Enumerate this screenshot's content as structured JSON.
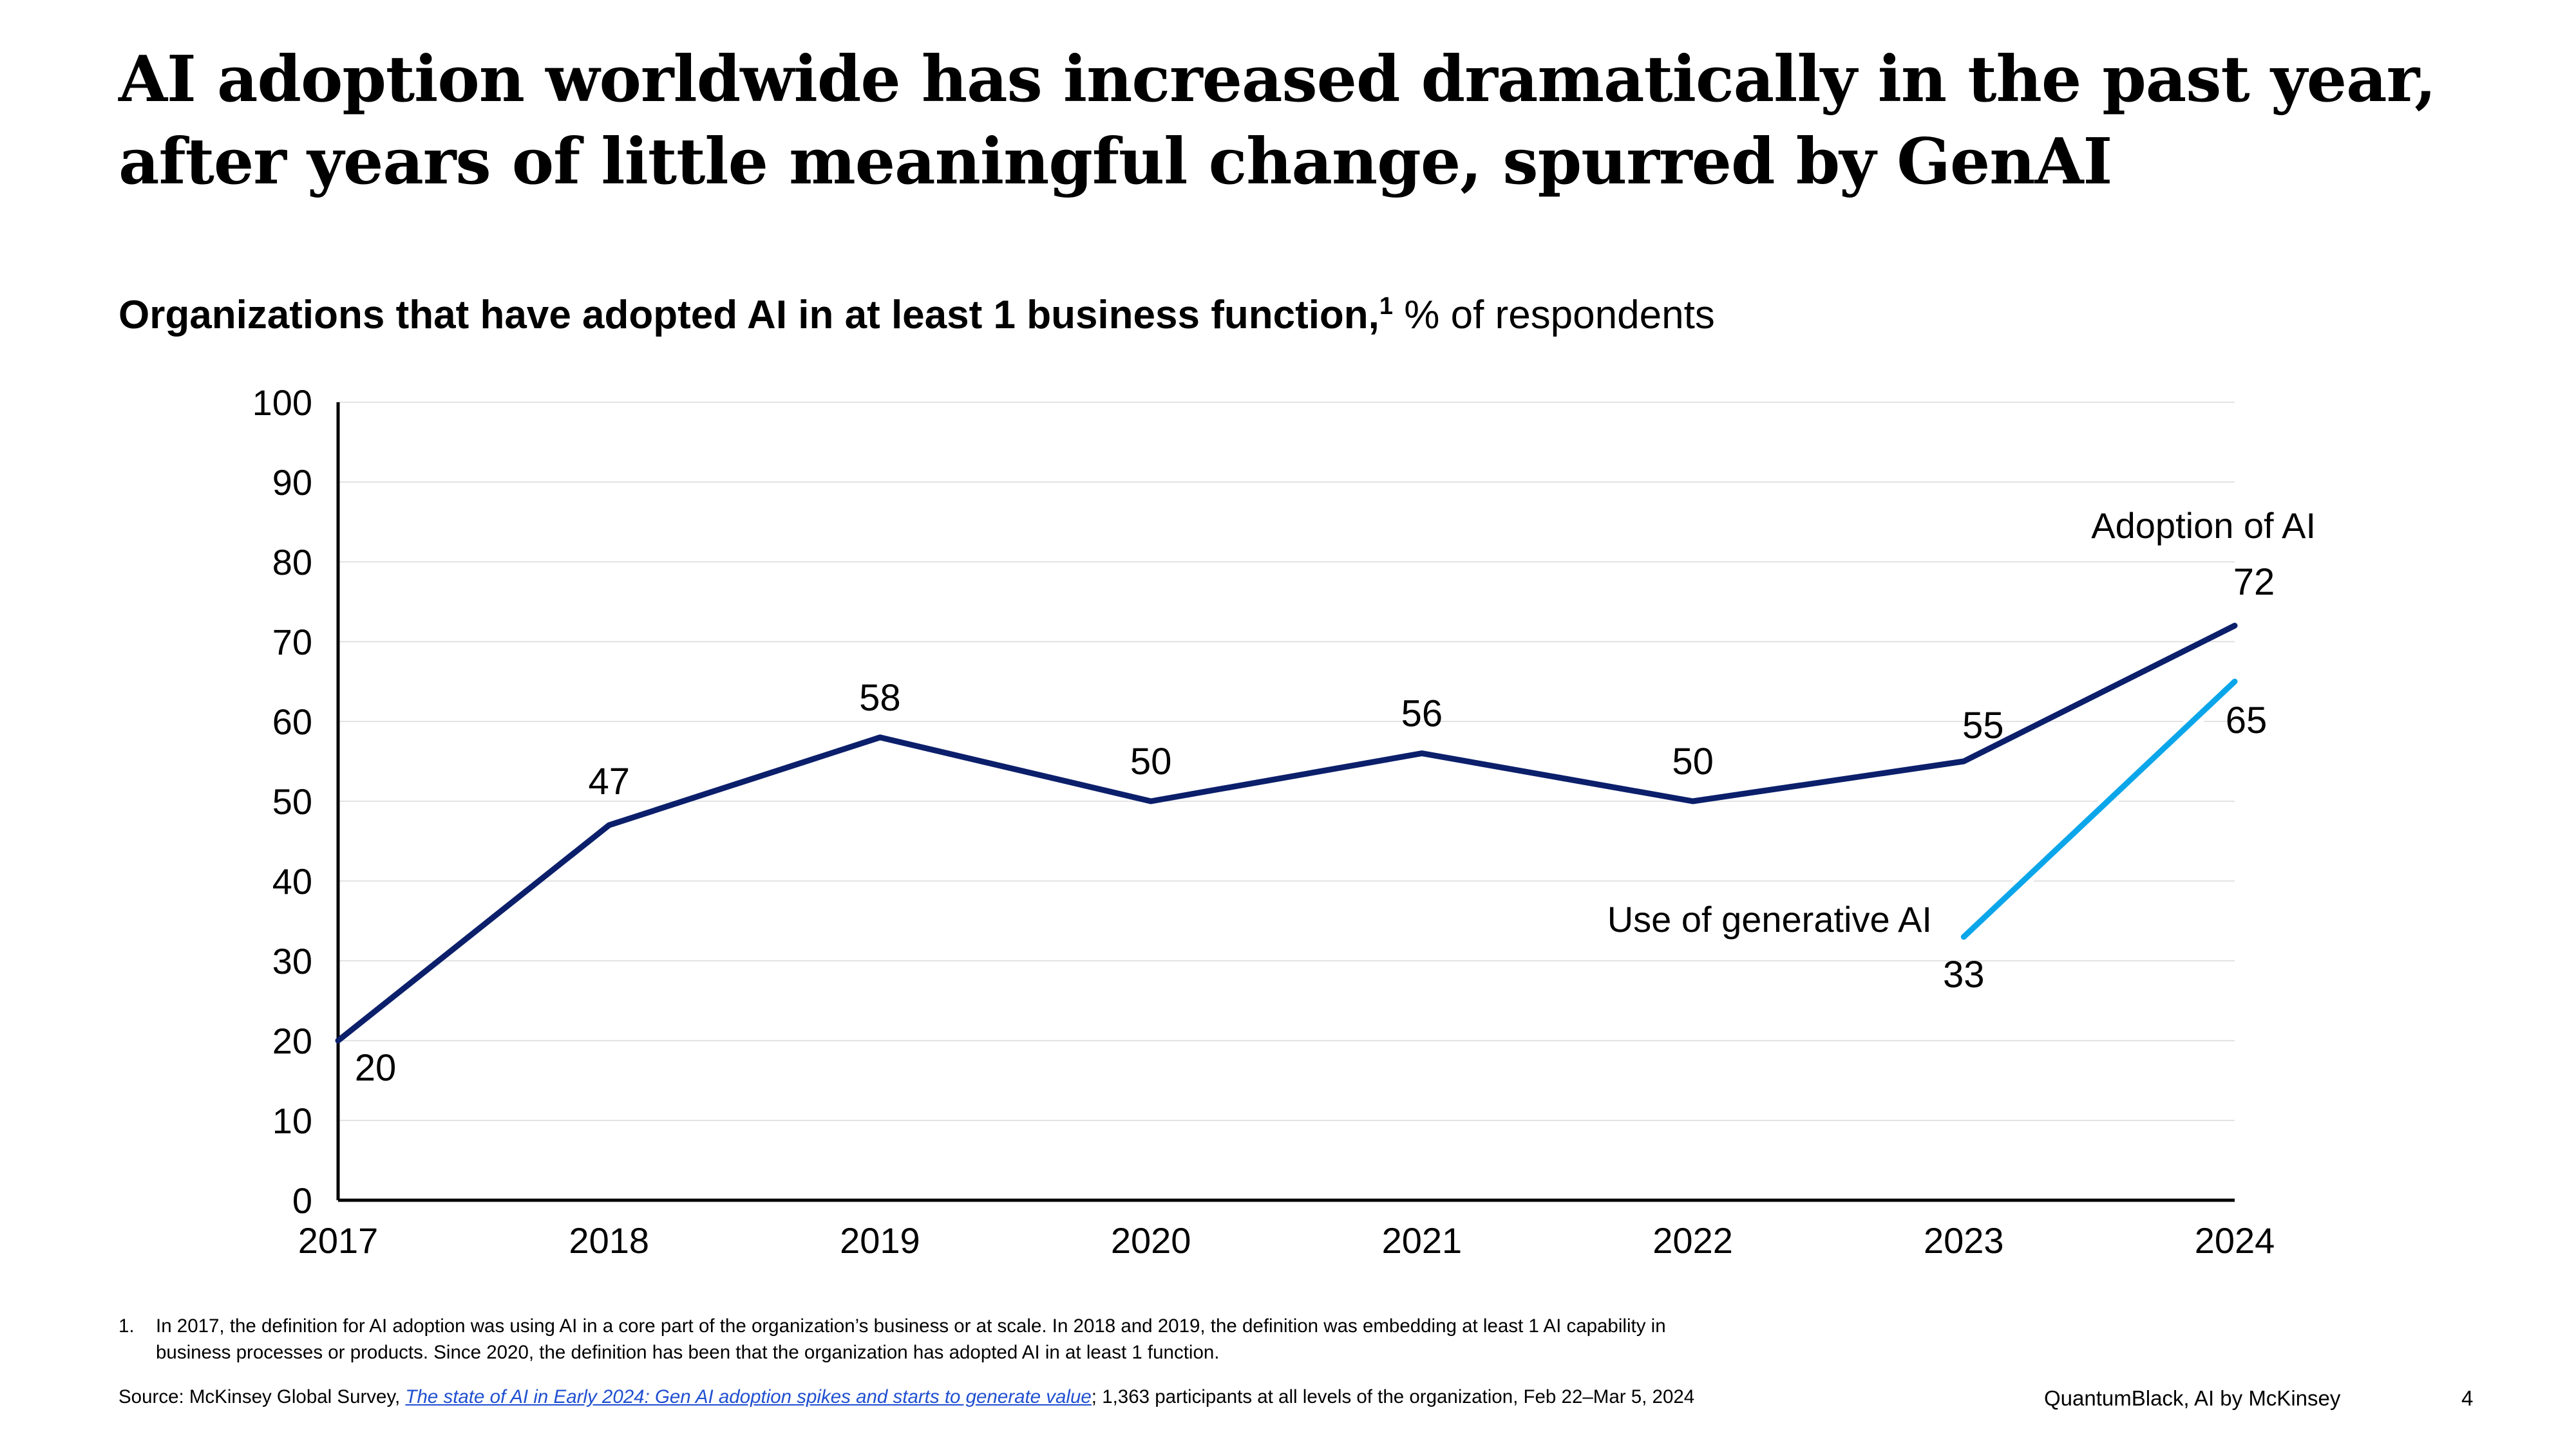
{
  "title": {
    "line1": "AI adoption worldwide has increased dramatically in the past year,",
    "line2": "after years of little meaningful change, spurred by GenAI"
  },
  "subtitle": {
    "bold": "Organizations that have adopted AI in at least 1 business function,",
    "sup": "1",
    "rest": " % of respondents"
  },
  "chart_data": {
    "type": "line",
    "categories": [
      "2017",
      "2018",
      "2019",
      "2020",
      "2021",
      "2022",
      "2023",
      "2024"
    ],
    "ylim": [
      0,
      100
    ],
    "yticks": [
      0,
      10,
      20,
      30,
      40,
      50,
      60,
      70,
      80,
      90,
      100
    ],
    "grid": true,
    "series": [
      {
        "name": "Adoption of AI",
        "color": "#0b1f6b",
        "x": [
          "2017",
          "2018",
          "2019",
          "2020",
          "2021",
          "2022",
          "2023",
          "2024"
        ],
        "values": [
          20,
          47,
          58,
          50,
          56,
          50,
          55,
          72
        ]
      },
      {
        "name": "Use of generative AI",
        "color": "#0ba6ea",
        "x": [
          "2023",
          "2024"
        ],
        "values": [
          33,
          65
        ]
      }
    ]
  },
  "footnote": {
    "number": "1.",
    "text": "In 2017, the definition for AI adoption was using AI in a core part of the organization’s business or at scale. In 2018 and 2019, the definition was embedding at least 1 AI capability in business processes or products. Since 2020, the definition has been that the organization has adopted AI in at least 1 function."
  },
  "source": {
    "prefix": "Source: McKinsey Global Survey, ",
    "link": "The state of AI in Early 2024: Gen AI adoption spikes and starts to generate value",
    "suffix": "; 1,363 participants at all levels of the organization, Feb 22–Mar 5, 2024"
  },
  "brand": "QuantumBlack, AI by McKinsey",
  "page_number": "4"
}
